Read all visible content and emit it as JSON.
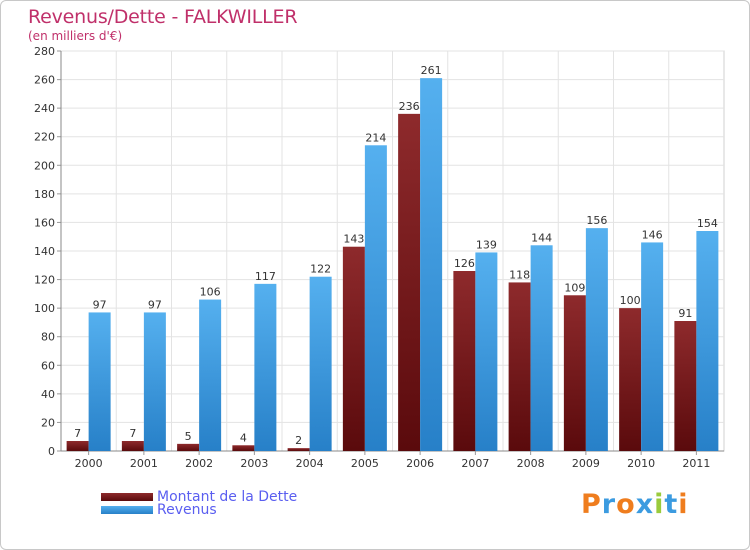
{
  "chart_data": {
    "type": "bar",
    "title": "Revenus/Dette - FALKWILLER",
    "subtitle": "(en milliers d'€)",
    "categories": [
      "2000",
      "2001",
      "2002",
      "2003",
      "2004",
      "2005",
      "2006",
      "2007",
      "2008",
      "2009",
      "2010",
      "2011"
    ],
    "series": [
      {
        "name": "Montant de la Dette",
        "color": "#7a1518",
        "values": [
          7,
          7,
          5,
          4,
          2,
          143,
          236,
          126,
          118,
          109,
          100,
          91
        ]
      },
      {
        "name": "Revenus",
        "color": "#3b9be0",
        "values": [
          97,
          97,
          106,
          117,
          122,
          214,
          261,
          139,
          144,
          156,
          146,
          154
        ]
      }
    ],
    "ylim": [
      0,
      280
    ],
    "yticks": [
      0,
      20,
      40,
      60,
      80,
      100,
      120,
      140,
      160,
      180,
      200,
      220,
      240,
      260,
      280
    ],
    "grid": true,
    "legend_position": "bottom-left"
  },
  "legend": {
    "debt_label": "Montant de la Dette",
    "revenue_label": "Revenus"
  },
  "logo": {
    "letters": [
      "P",
      "r",
      "o",
      "x",
      "i",
      "t",
      "i"
    ],
    "colors": [
      "#ef7d1e",
      "#3b9be0",
      "#ef7d1e",
      "#3b9be0",
      "#9acb3c",
      "#3b9be0",
      "#ef7d1e"
    ]
  }
}
